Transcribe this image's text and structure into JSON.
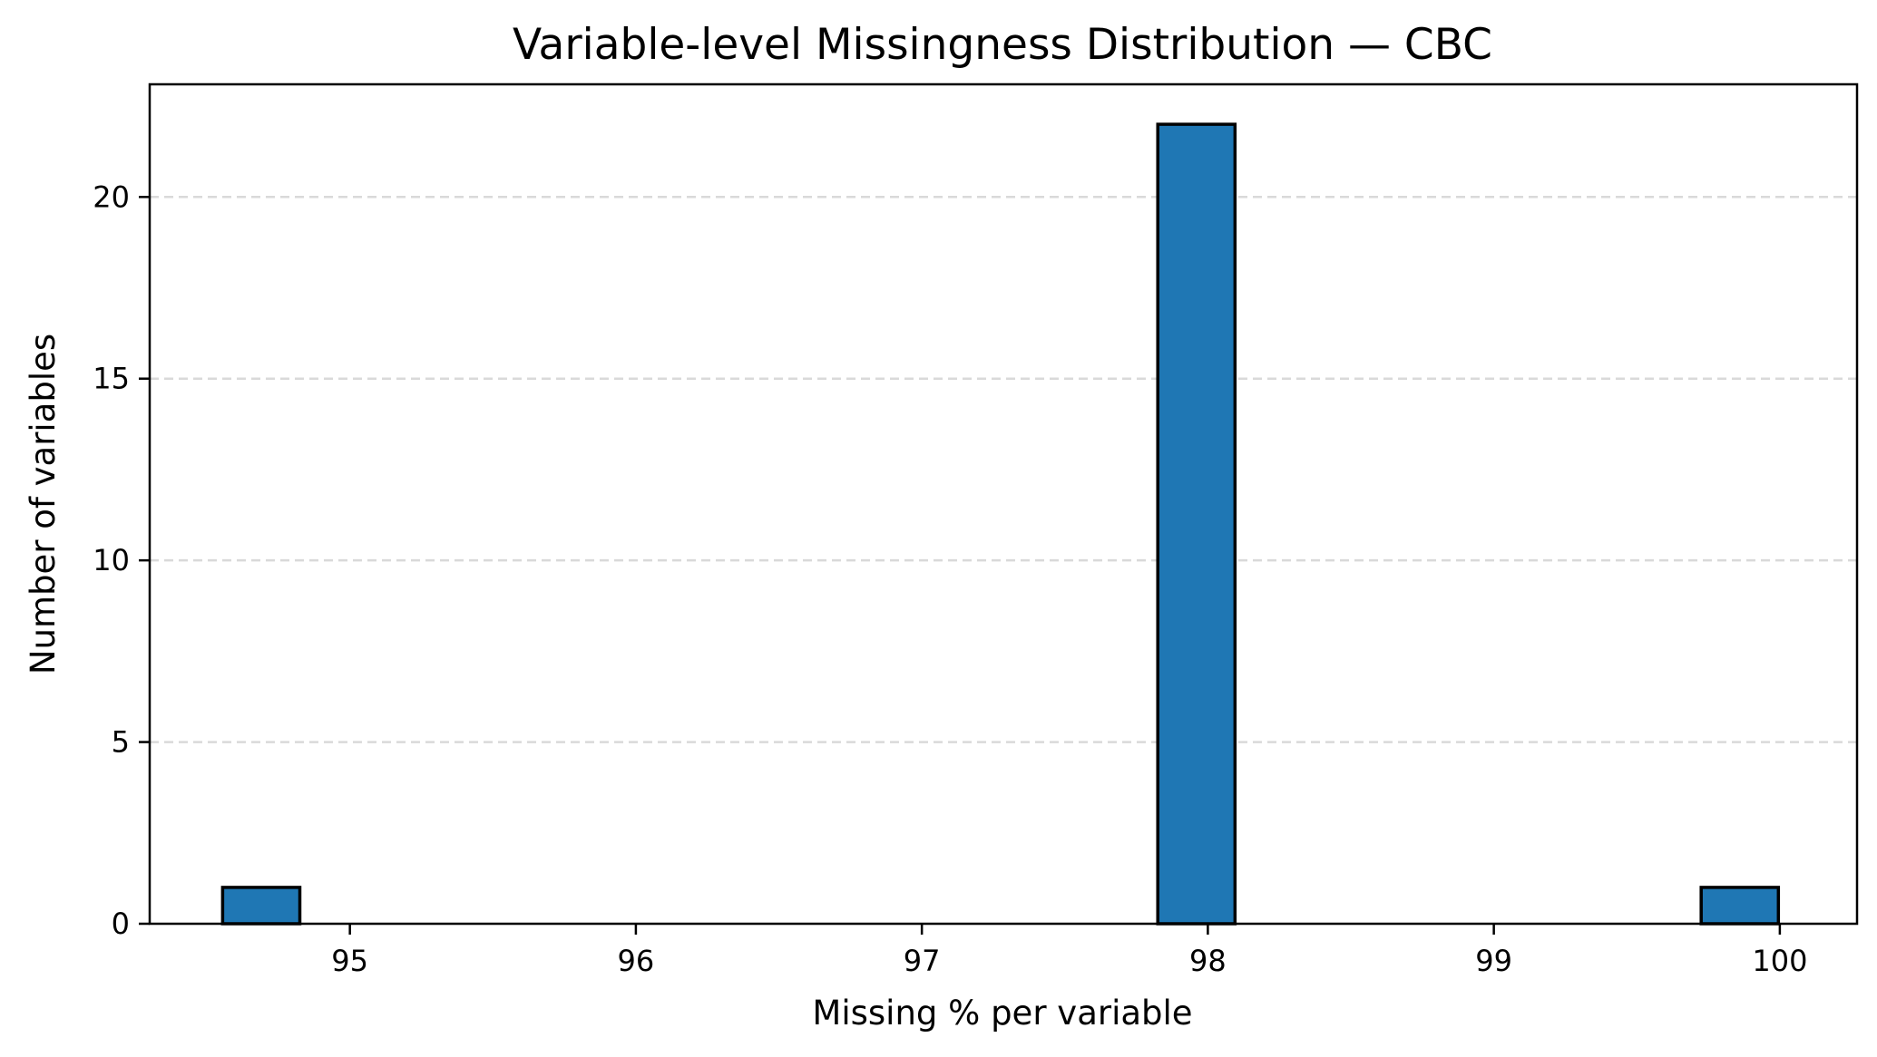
{
  "chart_data": {
    "type": "bar",
    "title": "Variable-level Missingness Distribution — CBC",
    "xlabel": "Missing % per variable",
    "ylabel": "Number of variables",
    "xlim": [
      94.3,
      100.27
    ],
    "ylim": [
      0,
      23.1
    ],
    "xticks": [
      95,
      96,
      97,
      98,
      99,
      100
    ],
    "yticks": [
      0,
      5,
      10,
      15,
      20
    ],
    "grid": "y-dashed",
    "bar_color": "#1f77b4",
    "bin_width": 0.27,
    "bins": [
      {
        "x": 94.69,
        "count": 1
      },
      {
        "x": 97.96,
        "count": 22
      },
      {
        "x": 99.86,
        "count": 1
      }
    ]
  }
}
